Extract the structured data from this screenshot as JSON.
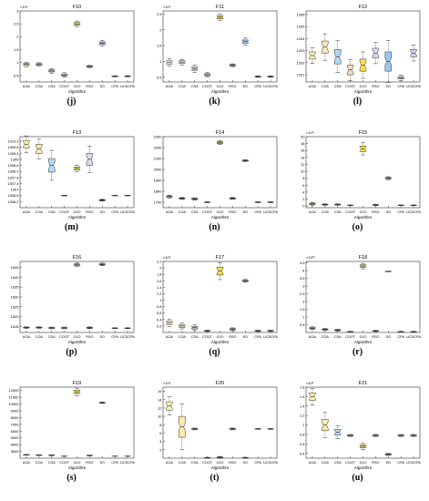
{
  "categories": [
    "AOA",
    "COA",
    "CSA",
    "COOT",
    "GJO",
    "RSO",
    "SO",
    "CPA",
    "UCDCPA"
  ],
  "colors": [
    "#fff2a8",
    "#fde8b0",
    "#b7d7f2",
    "#f4dcc3",
    "#f5e04a",
    "#d8d8f0",
    "#9ec6f5",
    "#e8d4ef",
    "#cfd0f0"
  ],
  "xlabel": "Algorithm",
  "chart_data": [
    {
      "type": "box",
      "title": "F10",
      "letter": "(j)",
      "exponent": "×10⁴",
      "ylim": [
        0.25,
        3
      ],
      "yticks": [
        "0.5",
        "1",
        "1.5",
        "2",
        "2.5",
        "3"
      ],
      "ytick_values": [
        0.5,
        1,
        1.5,
        2,
        2.5,
        3
      ],
      "medians": [
        0.93,
        0.93,
        0.68,
        0.52,
        2.5,
        0.85,
        1.75,
        0.47,
        0.47
      ],
      "spread": [
        0.04,
        0.03,
        0.04,
        0.04,
        0.05,
        0.02,
        0.05,
        0.01,
        0.01
      ],
      "box_colors": [
        0,
        1,
        2,
        3,
        4,
        5,
        6,
        7,
        8
      ]
    },
    {
      "type": "box",
      "title": "F11",
      "letter": "(k)",
      "exponent": "×10⁴",
      "ylim": [
        0.35,
        2.6
      ],
      "yticks": [
        "0.5",
        "1",
        "1.5",
        "2",
        "2.5"
      ],
      "ytick_values": [
        0.5,
        1,
        1.5,
        2,
        2.5
      ],
      "medians": [
        0.97,
        0.98,
        0.77,
        0.58,
        2.4,
        0.88,
        1.63,
        0.52,
        0.52
      ],
      "spread": [
        0.05,
        0.04,
        0.05,
        0.03,
        0.05,
        0.02,
        0.05,
        0.01,
        0.01
      ],
      "box_colors": [
        0,
        1,
        2,
        3,
        4,
        5,
        6,
        7,
        8
      ]
    },
    {
      "type": "box",
      "title": "F12",
      "letter": "(l)",
      "exponent": "",
      "ylim": [
        1200.4,
        1206.3
      ],
      "yticks": [
        "1201",
        "1202",
        "1203",
        "1204",
        "1205",
        "1206"
      ],
      "ytick_values": [
        1201,
        1202,
        1203,
        1204,
        1205,
        1206
      ],
      "medians": [
        1202.6,
        1203.3,
        1202.5,
        1201.4,
        1201.8,
        1202.8,
        1202.1,
        1200.75,
        1202.8
      ],
      "spread": [
        0.3,
        0.5,
        0.6,
        0.4,
        0.5,
        0.4,
        0.8,
        0.1,
        0.3
      ],
      "box_colors": [
        0,
        1,
        2,
        3,
        4,
        5,
        6,
        7,
        8
      ]
    },
    {
      "type": "box",
      "title": "F13",
      "letter": "(m)",
      "exponent": "",
      "ylim": [
        1305.8,
        1310.5
      ],
      "yticks": [
        "1306.2",
        "1306.6",
        "1307",
        "1307.4",
        "1307.8",
        "1308.2",
        "1308.6",
        "1309",
        "1309.4",
        "1309.8",
        "1310.2"
      ],
      "ytick_values": [
        1306.2,
        1306.6,
        1307,
        1307.4,
        1307.8,
        1308.2,
        1308.6,
        1309,
        1309.4,
        1309.8,
        1310.2
      ],
      "medians": [
        1310.0,
        1309.7,
        1308.6,
        1306.6,
        1308.4,
        1309.0,
        1306.3,
        1306.6,
        1306.6
      ],
      "spread": [
        0.25,
        0.3,
        0.45,
        0.01,
        0.1,
        0.4,
        0.03,
        0.01,
        0.01
      ],
      "box_colors": [
        0,
        1,
        2,
        3,
        4,
        5,
        6,
        7,
        8
      ]
    },
    {
      "type": "box",
      "title": "F14",
      "letter": "(n)",
      "exponent": "",
      "ylim": [
        1650,
        2300
      ],
      "yticks": [
        "1700",
        "1800",
        "1900",
        "2000",
        "2100",
        "2200",
        "2300"
      ],
      "ytick_values": [
        1700,
        1800,
        1900,
        2000,
        2100,
        2200,
        2300
      ],
      "medians": [
        1752,
        1735,
        1730,
        1700,
        2245,
        1735,
        2080,
        1700,
        1700
      ],
      "spread": [
        6,
        4,
        5,
        2,
        8,
        4,
        4,
        2,
        2
      ],
      "box_colors": [
        0,
        1,
        2,
        3,
        4,
        5,
        6,
        7,
        8
      ]
    },
    {
      "type": "box",
      "title": "F15",
      "letter": "(o)",
      "exponent": "×10⁵",
      "ylim": [
        -0.5,
        20
      ],
      "yticks": [
        "0",
        "2",
        "4",
        "6",
        "8",
        "10",
        "12",
        "14",
        "16",
        "18",
        "20"
      ],
      "ytick_values": [
        0,
        2,
        4,
        6,
        8,
        10,
        12,
        14,
        16,
        18,
        20
      ],
      "medians": [
        0.6,
        0.4,
        0.4,
        0.2,
        16.5,
        0.3,
        8.0,
        0.2,
        0.2
      ],
      "spread": [
        0.2,
        0.1,
        0.1,
        0.05,
        0.8,
        0.1,
        0.2,
        0.05,
        0.05
      ],
      "box_colors": [
        0,
        1,
        2,
        3,
        4,
        5,
        6,
        7,
        8
      ]
    },
    {
      "type": "box",
      "title": "F16",
      "letter": "(p)",
      "exponent": "",
      "ylim": [
        1612,
        1648
      ],
      "yticks": [
        "1615",
        "1620",
        "1625",
        "1630",
        "1635",
        "1640",
        "1645"
      ],
      "ytick_values": [
        1615,
        1620,
        1625,
        1630,
        1635,
        1640,
        1645
      ],
      "medians": [
        1614.5,
        1614.5,
        1614.3,
        1614.3,
        1646.3,
        1614.4,
        1646.5,
        1614.2,
        1614.2
      ],
      "spread": [
        0.2,
        0.2,
        0.2,
        0.2,
        0.4,
        0.2,
        0.3,
        0.1,
        0.1
      ],
      "box_colors": [
        0,
        1,
        2,
        3,
        4,
        5,
        6,
        7,
        8
      ]
    },
    {
      "type": "box",
      "title": "F17",
      "letter": "(q)",
      "exponent": "×10⁵",
      "ylim": [
        0,
        2.2
      ],
      "yticks": [
        "0.2",
        "0.4",
        "0.6",
        "0.8",
        "1",
        "1.2",
        "1.4",
        "1.6",
        "1.8",
        "2",
        "2.2"
      ],
      "ytick_values": [
        0.2,
        0.4,
        0.6,
        0.8,
        1,
        1.2,
        1.4,
        1.6,
        1.8,
        2,
        2.2
      ],
      "medians": [
        0.3,
        0.2,
        0.15,
        0.05,
        1.9,
        0.1,
        1.6,
        0.05,
        0.05
      ],
      "spread": [
        0.05,
        0.04,
        0.04,
        0.01,
        0.12,
        0.02,
        0.02,
        0.01,
        0.01
      ],
      "box_colors": [
        0,
        1,
        2,
        3,
        4,
        5,
        6,
        7,
        8
      ]
    },
    {
      "type": "box",
      "title": "F18",
      "letter": "(r)",
      "exponent": "×10¹⁰",
      "ylim": [
        0,
        4.6
      ],
      "yticks": [
        "0.5",
        "1",
        "1.5",
        "2",
        "2.5",
        "3",
        "3.5",
        "4",
        "4.5"
      ],
      "ytick_values": [
        0.5,
        1,
        1.5,
        2,
        2.5,
        3,
        3.5,
        4,
        4.5
      ],
      "medians": [
        0.28,
        0.2,
        0.15,
        0.05,
        4.3,
        0.1,
        3.95,
        0.05,
        0.05
      ],
      "spread": [
        0.04,
        0.03,
        0.03,
        0.01,
        0.08,
        0.02,
        0.01,
        0.01,
        0.01
      ],
      "box_colors": [
        0,
        1,
        2,
        3,
        4,
        5,
        6,
        7,
        8
      ]
    },
    {
      "type": "box",
      "title": "F19",
      "letter": "(s)",
      "exponent": "",
      "ylim": [
        2000,
        12500
      ],
      "yticks": [
        "3000",
        "4000",
        "5000",
        "6000",
        "7000",
        "8000",
        "9000",
        "10000",
        "11000",
        "12000"
      ],
      "ytick_values": [
        3000,
        4000,
        5000,
        6000,
        7000,
        8000,
        9000,
        10000,
        11000,
        12000
      ],
      "medians": [
        2500,
        2450,
        2430,
        2300,
        11800,
        2400,
        10200,
        2300,
        2300
      ],
      "spread": [
        30,
        30,
        30,
        10,
        250,
        30,
        40,
        10,
        10
      ],
      "box_colors": [
        0,
        1,
        2,
        3,
        4,
        5,
        6,
        7,
        8
      ]
    },
    {
      "type": "box",
      "title": "F20",
      "letter": "(t)",
      "exponent": "×10⁶",
      "ylim": [
        0,
        17
      ],
      "yticks": [
        "2",
        "4",
        "6",
        "8",
        "10",
        "12",
        "14",
        "16"
      ],
      "ytick_values": [
        2,
        4,
        6,
        8,
        10,
        12,
        14,
        16
      ],
      "medians": [
        12.5,
        7.5,
        7.0,
        0.1,
        0.2,
        7.0,
        0.1,
        7.0,
        7.0
      ],
      "spread": [
        1.0,
        2.5,
        0.1,
        0.05,
        0.1,
        0.1,
        0.05,
        0.05,
        0.05
      ],
      "box_colors": [
        0,
        1,
        2,
        3,
        4,
        5,
        6,
        7,
        8
      ]
    },
    {
      "type": "box",
      "title": "F21",
      "letter": "(u)",
      "exponent": "×10⁶",
      "ylim": [
        0.3,
        1.8
      ],
      "yticks": [
        "0.4",
        "0.6",
        "0.8",
        "1",
        "1.2",
        "1.4",
        "1.6",
        "1.8"
      ],
      "ytick_values": [
        0.4,
        0.6,
        0.8,
        1,
        1.2,
        1.4,
        1.6,
        1.8
      ],
      "medians": [
        1.6,
        1.0,
        0.85,
        0.78,
        0.55,
        0.78,
        0.38,
        0.78,
        0.78
      ],
      "spread": [
        0.08,
        0.12,
        0.06,
        0.01,
        0.03,
        0.01,
        0.01,
        0.01,
        0.01
      ],
      "box_colors": [
        0,
        1,
        2,
        3,
        4,
        5,
        6,
        7,
        8
      ]
    }
  ]
}
